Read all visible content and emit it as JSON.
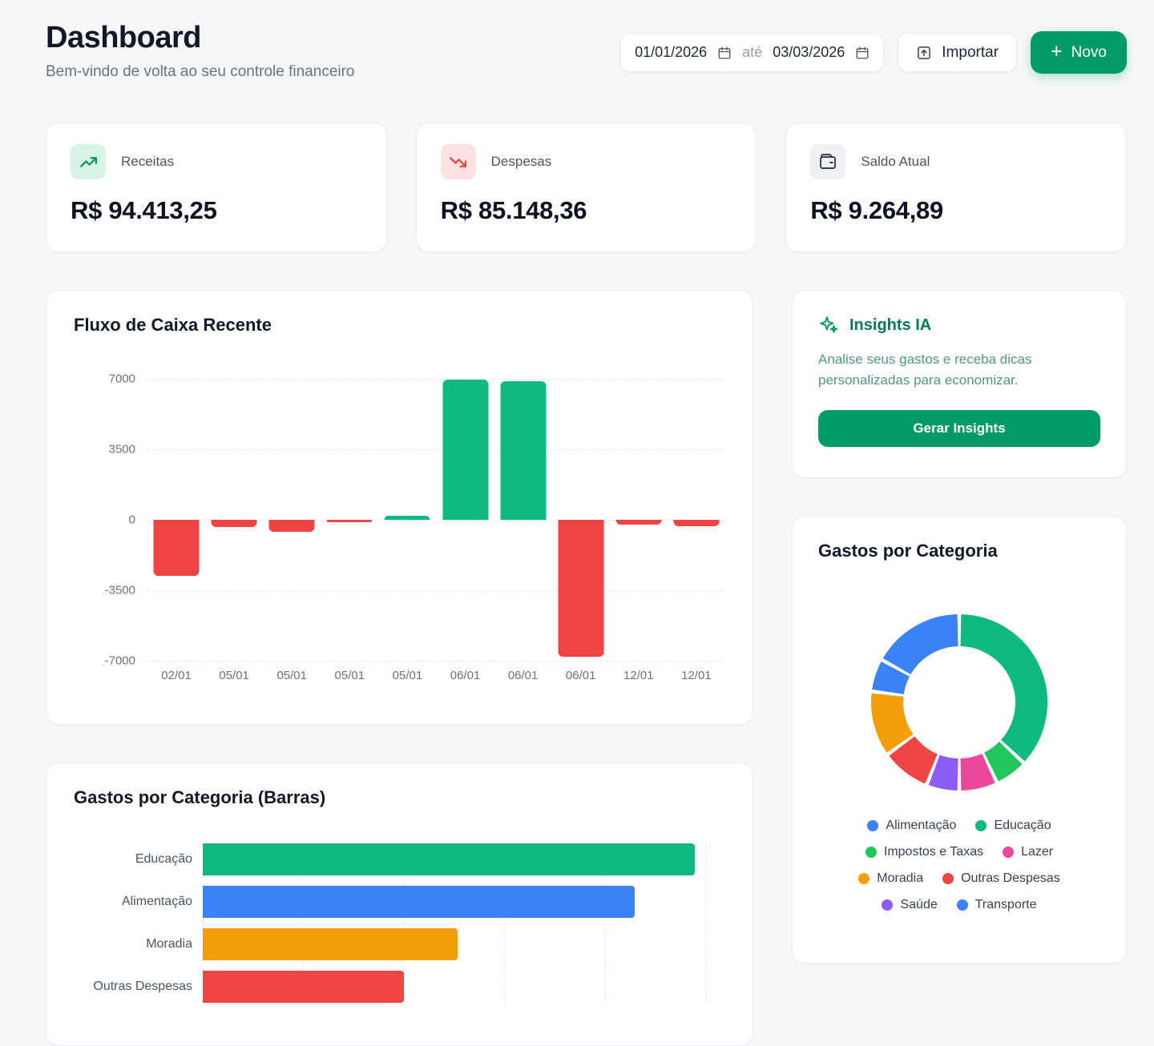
{
  "theme": {
    "accent_green": "#039a68",
    "page_background": "#f6f7f9",
    "positive": "#10b981",
    "negative": "#ef4444"
  },
  "header": {
    "title": "Dashboard",
    "subtitle": "Bem-vindo de volta ao seu controle financeiro",
    "date_from": "01/01/2026",
    "date_separator": "até",
    "date_to": "03/03/2026",
    "import_label": "Importar",
    "new_plus": "+",
    "new_label": "Novo"
  },
  "stats": [
    {
      "label": "Receitas",
      "value": "R$ 94.413,25",
      "icon": "trending-up-icon",
      "accent": "#059669",
      "icon_bg": "#d6f5e5"
    },
    {
      "label": "Despesas",
      "value": "R$ 85.148,36",
      "icon": "trending-down-icon",
      "accent": "#ef4444",
      "icon_bg": "#fde2e2"
    },
    {
      "label": "Saldo Atual",
      "value": "R$ 9.264,89",
      "icon": "wallet-icon",
      "accent": "#374151",
      "icon_bg": "#eef0f3"
    }
  ],
  "insights": {
    "icon": "sparkles-icon",
    "title": "Insights IA",
    "description": "Analise seus gastos e receba dicas personalizadas para economizar.",
    "button_label": "Gerar Insights"
  },
  "chart_data": [
    {
      "type": "bar",
      "title": "Fluxo de Caixa Recente",
      "categories": [
        "02/01",
        "05/01",
        "05/01",
        "05/01",
        "05/01",
        "06/01",
        "06/01",
        "06/01",
        "12/01",
        "12/01"
      ],
      "values": [
        -2800,
        -350,
        -600,
        -130,
        180,
        6950,
        6900,
        -6800,
        -250,
        -320
      ],
      "xlabel": "",
      "ylabel": "",
      "ylim": [
        -7000,
        7000
      ],
      "yticks": [
        7000,
        3500,
        0,
        -3500,
        -7000
      ],
      "positive_color": "#10b981",
      "negative_color": "#ef4444",
      "grid": "horizontal-dashed",
      "legend_position": "none"
    },
    {
      "type": "pie",
      "style": "donut",
      "title": "Gastos por Categoria",
      "segments_clockwise_from_top": [
        {
          "label": "Educação",
          "value": 37,
          "color": "#10b981"
        },
        {
          "label": "Impostos e Taxas",
          "value": 6,
          "color": "#22c55e"
        },
        {
          "label": "Lazer",
          "value": 7,
          "color": "#ec4899"
        },
        {
          "label": "Saúde",
          "value": 6,
          "color": "#8b5cf6"
        },
        {
          "label": "Outras Despesas",
          "value": 9,
          "color": "#ef4444"
        },
        {
          "label": "Moradia",
          "value": 12,
          "color": "#f59e0b"
        },
        {
          "label": "Transporte",
          "value": 6,
          "color": "#3b82f6"
        },
        {
          "label": "Alimentação",
          "value": 17,
          "color": "#3b82f6"
        }
      ],
      "legend": [
        {
          "label": "Alimentação",
          "color": "#3b82f6"
        },
        {
          "label": "Educação",
          "color": "#10b981"
        },
        {
          "label": "Impostos e Taxas",
          "color": "#22c55e"
        },
        {
          "label": "Lazer",
          "color": "#ec4899"
        },
        {
          "label": "Moradia",
          "color": "#f59e0b"
        },
        {
          "label": "Outras Despesas",
          "color": "#ef4444"
        },
        {
          "label": "Saúde",
          "color": "#8b5cf6"
        },
        {
          "label": "Transporte",
          "color": "#3b82f6"
        }
      ],
      "legend_position": "bottom"
    },
    {
      "type": "bar",
      "orientation": "horizontal",
      "title": "Gastos por Categoria (Barras)",
      "categories": [
        "Educação",
        "Alimentação",
        "Moradia",
        "Outras Despesas"
      ],
      "values": [
        24500,
        21500,
        12700,
        10000
      ],
      "colors": [
        "#10b981",
        "#3b82f6",
        "#f59e0b",
        "#ef4444"
      ],
      "xlim": [
        0,
        26000
      ],
      "xgrid": [
        0,
        5000,
        10000,
        15000,
        20000,
        25000
      ],
      "grid": "vertical-dashed",
      "legend_position": "none"
    }
  ]
}
